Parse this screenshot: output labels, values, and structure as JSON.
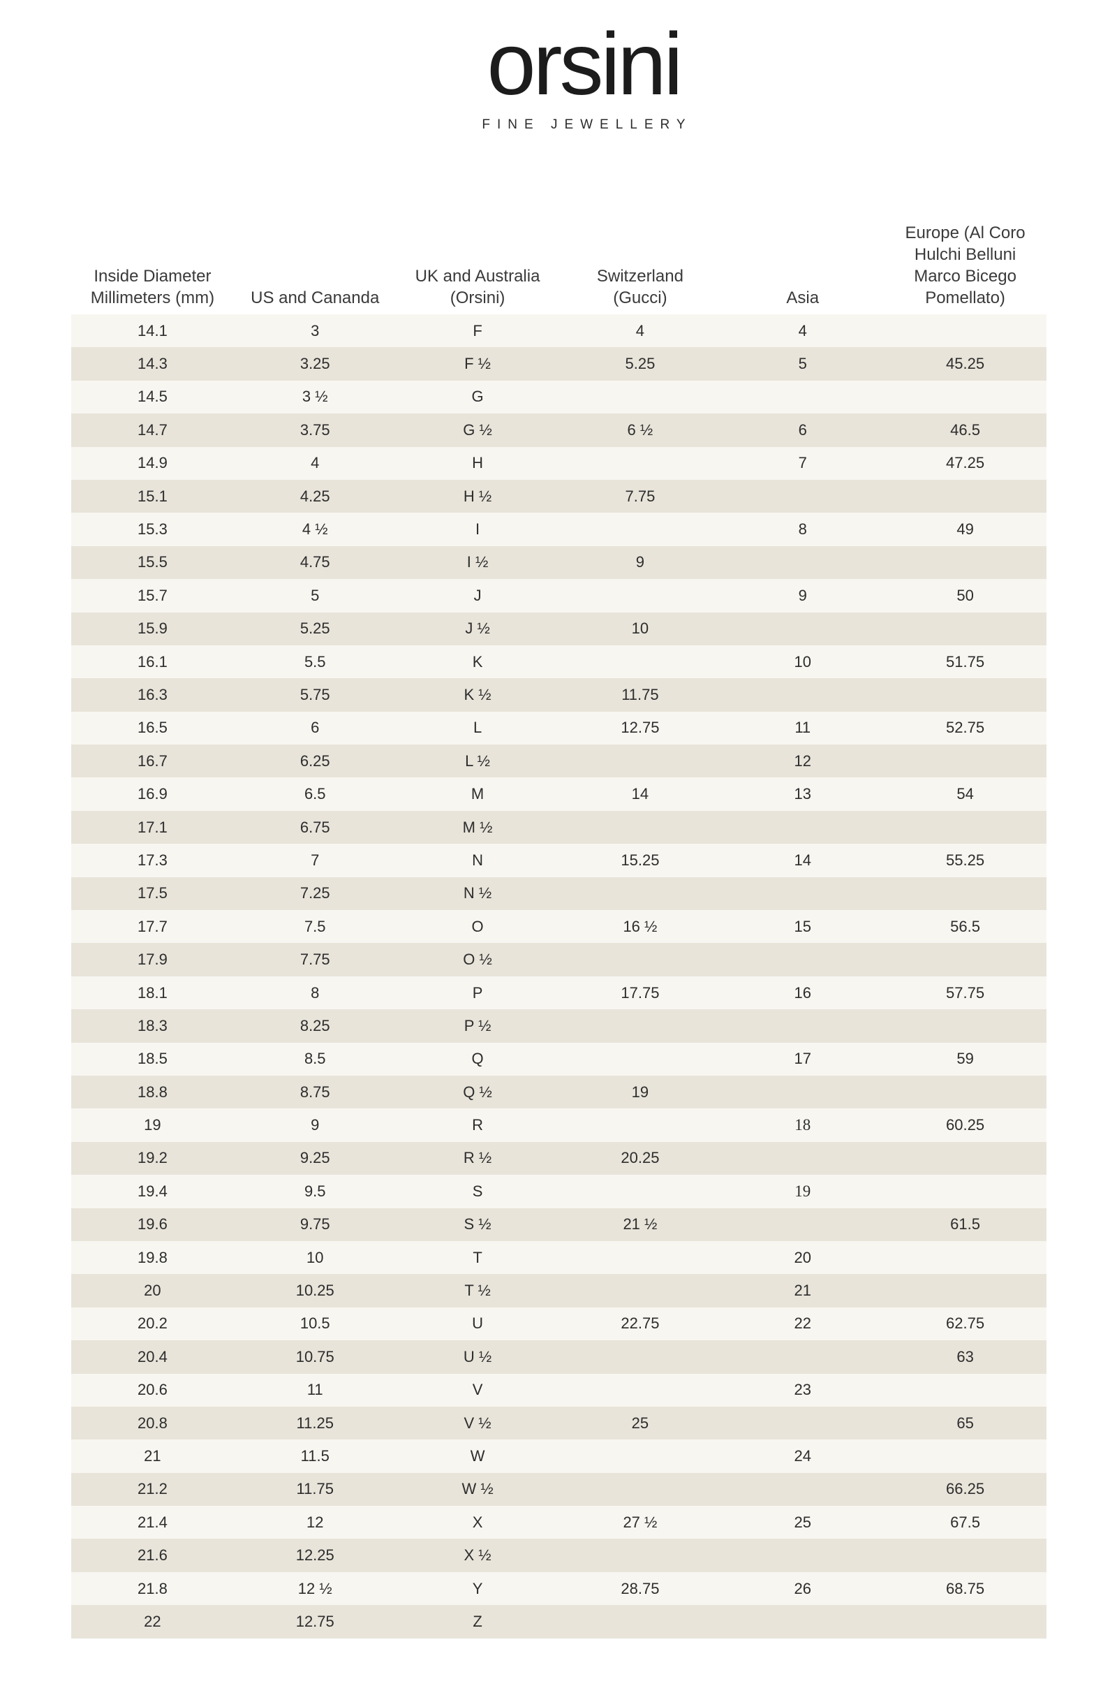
{
  "brand": {
    "logo": "orsini",
    "tagline": "FINE JEWELLERY"
  },
  "colors": {
    "stripe_light": "#f8f6f1",
    "stripe_dark": "#e8e4da",
    "text": "#2d2d2d",
    "background": "#ffffff"
  },
  "table": {
    "columns": [
      "Inside Diameter\nMillimeters (mm)",
      "US and Cananda",
      "UK and Australia\n(Orsini)",
      "Switzerland\n(Gucci)",
      "Asia",
      "Europe (Al Coro\nHulchi Belluni\nMarco Bicego\nPomellato)"
    ],
    "rows": [
      [
        "14.1",
        "3",
        "F",
        "4",
        "4",
        ""
      ],
      [
        "14.3",
        "3.25",
        "F ½",
        "5.25",
        "5",
        "45.25"
      ],
      [
        "14.5",
        "3 ½",
        "G",
        "",
        "",
        ""
      ],
      [
        "14.7",
        "3.75",
        "G ½",
        "6 ½",
        "6",
        "46.5"
      ],
      [
        "14.9",
        "4",
        "H",
        "",
        "7",
        "47.25"
      ],
      [
        "15.1",
        "4.25",
        "H ½",
        "7.75",
        "",
        ""
      ],
      [
        "15.3",
        "4 ½",
        "I",
        "",
        "8",
        "49"
      ],
      [
        "15.5",
        "4.75",
        "I ½",
        "9",
        "",
        ""
      ],
      [
        "15.7",
        "5",
        "J",
        "",
        "9",
        "50"
      ],
      [
        "15.9",
        "5.25",
        "J ½",
        "10",
        "",
        ""
      ],
      [
        "16.1",
        "5.5",
        "K",
        "",
        "10",
        "51.75"
      ],
      [
        "16.3",
        "5.75",
        "K ½",
        "11.75",
        "",
        ""
      ],
      [
        "16.5",
        "6",
        "L",
        "12.75",
        "11",
        "52.75"
      ],
      [
        "16.7",
        "6.25",
        "L ½",
        "",
        "12",
        ""
      ],
      [
        "16.9",
        "6.5",
        "M",
        "14",
        "13",
        "54"
      ],
      [
        "17.1",
        "6.75",
        "M ½",
        "",
        "",
        ""
      ],
      [
        "17.3",
        "7",
        "N",
        "15.25",
        "14",
        "55.25"
      ],
      [
        "17.5",
        "7.25",
        "N ½",
        "",
        "",
        ""
      ],
      [
        "17.7",
        "7.5",
        "O",
        "16 ½",
        "15",
        "56.5"
      ],
      [
        "17.9",
        "7.75",
        "O ½",
        "",
        "",
        ""
      ],
      [
        "18.1",
        "8",
        "P",
        "17.75",
        "16",
        "57.75"
      ],
      [
        "18.3",
        "8.25",
        "P ½",
        "",
        "",
        ""
      ],
      [
        "18.5",
        "8.5",
        "Q",
        "",
        "17",
        "59"
      ],
      [
        "18.8",
        "8.75",
        "Q ½",
        "19",
        "",
        ""
      ],
      [
        "19",
        "9",
        "R",
        "",
        "18",
        "60.25"
      ],
      [
        "19.2",
        "9.25",
        "R ½",
        "20.25",
        "",
        ""
      ],
      [
        "19.4",
        "9.5",
        "S",
        "",
        "19",
        ""
      ],
      [
        "19.6",
        "9.75",
        "S ½",
        "21 ½",
        "",
        "61.5"
      ],
      [
        "19.8",
        "10",
        "T",
        "",
        "20",
        ""
      ],
      [
        "20",
        "10.25",
        "T ½",
        "",
        "21",
        ""
      ],
      [
        "20.2",
        "10.5",
        "U",
        "22.75",
        "22",
        "62.75"
      ],
      [
        "20.4",
        "10.75",
        "U ½",
        "",
        "",
        "63"
      ],
      [
        "20.6",
        "11",
        "V",
        "",
        "23",
        ""
      ],
      [
        "20.8",
        "11.25",
        "V ½",
        "25",
        "",
        "65"
      ],
      [
        "21",
        "11.5",
        "W",
        "",
        "24",
        ""
      ],
      [
        "21.2",
        "11.75",
        "W ½",
        "",
        "",
        "66.25"
      ],
      [
        "21.4",
        "12",
        "X",
        "27 ½",
        "25",
        "67.5"
      ],
      [
        "21.6",
        "12.25",
        "X ½",
        "",
        "",
        ""
      ],
      [
        "21.8",
        "12 ½",
        "Y",
        "28.75",
        "26",
        "68.75"
      ],
      [
        "22",
        "12.75",
        "Z",
        "",
        "",
        ""
      ]
    ],
    "alt_font_cells": [
      [
        24,
        4
      ],
      [
        26,
        4
      ]
    ]
  }
}
